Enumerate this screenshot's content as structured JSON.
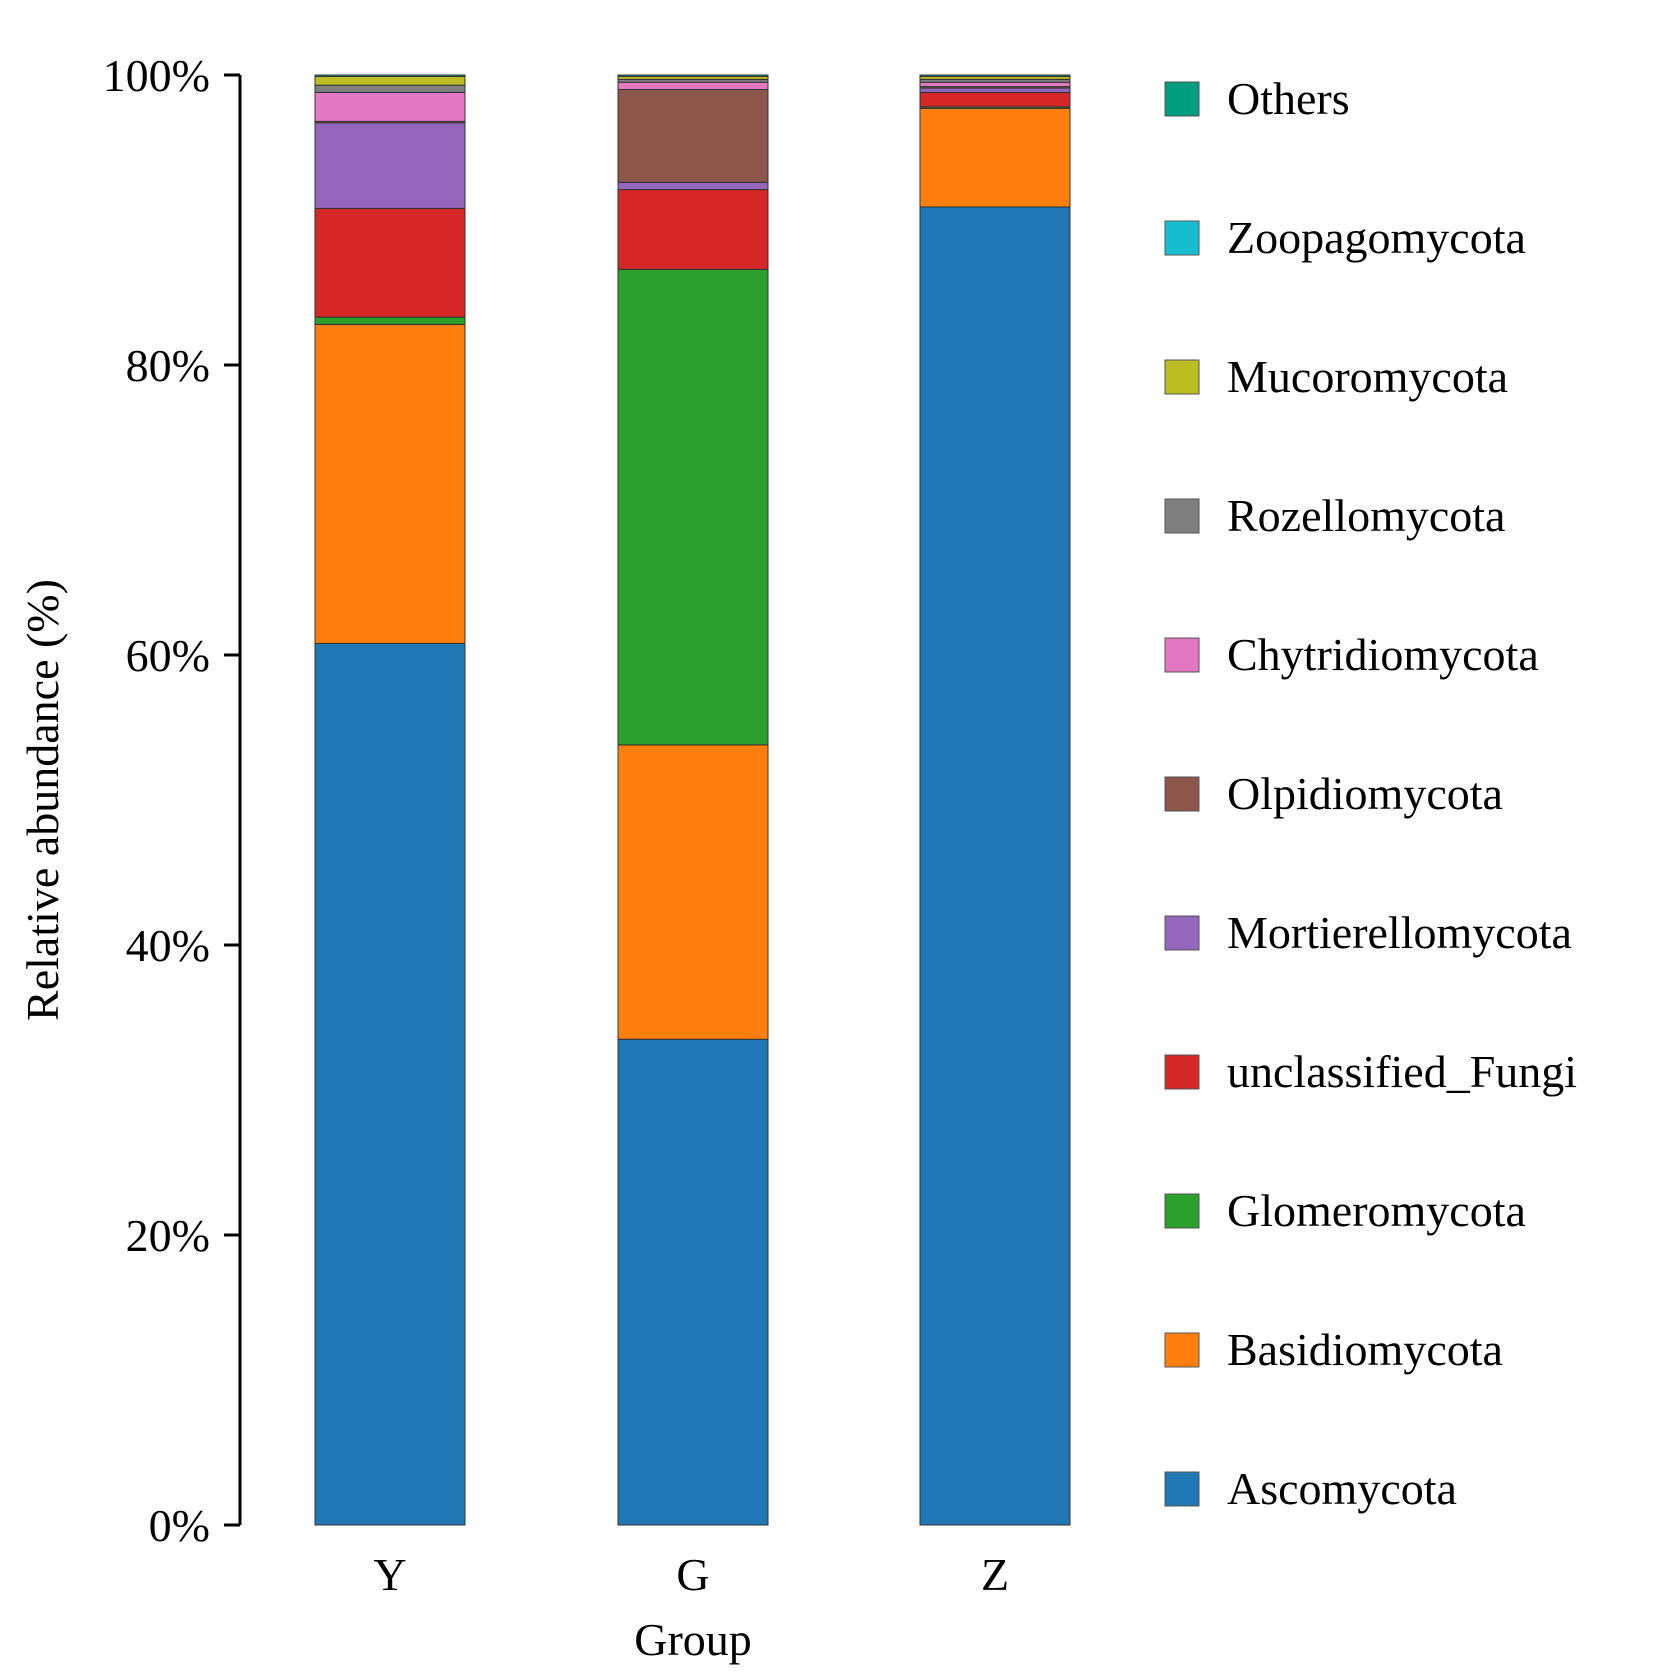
{
  "chart_data": {
    "type": "bar",
    "stacked": true,
    "categories": [
      "Y",
      "G",
      "Z"
    ],
    "xlabel": "Group",
    "ylabel": "Relative abundance (%)",
    "ylim": [
      0,
      100
    ],
    "yticks": [
      "0%",
      "20%",
      "40%",
      "60%",
      "80%",
      "100%"
    ],
    "ytick_values": [
      0,
      20,
      40,
      60,
      80,
      100
    ],
    "legend_position": "right",
    "series": [
      {
        "name": "Ascomycota",
        "color": "#1f77b4",
        "values": [
          60.8,
          33.5,
          90.9
        ]
      },
      {
        "name": "Basidiomycota",
        "color": "#ff7f0e",
        "values": [
          22.0,
          20.3,
          6.8
        ]
      },
      {
        "name": "Glomeromycota",
        "color": "#2ca02c",
        "values": [
          0.5,
          32.8,
          0.1
        ]
      },
      {
        "name": "unclassified_Fungi",
        "color": "#d62728",
        "values": [
          7.5,
          5.5,
          1.0
        ]
      },
      {
        "name": "Mortierellomycota",
        "color": "#9467bd",
        "values": [
          5.9,
          0.5,
          0.3
        ]
      },
      {
        "name": "Olpidiomycota",
        "color": "#8c564b",
        "values": [
          0.1,
          6.4,
          0.1
        ]
      },
      {
        "name": "Chytridiomycota",
        "color": "#e377c2",
        "values": [
          2.0,
          0.5,
          0.3
        ]
      },
      {
        "name": "Rozellomycota",
        "color": "#7f7f7f",
        "values": [
          0.5,
          0.2,
          0.2
        ]
      },
      {
        "name": "Mucoromycota",
        "color": "#bcbd22",
        "values": [
          0.6,
          0.2,
          0.2
        ]
      },
      {
        "name": "Zoopagomycota",
        "color": "#17becf",
        "values": [
          0.0,
          0.0,
          0.0
        ]
      },
      {
        "name": "Others",
        "color": "#009e80",
        "values": [
          0.1,
          0.1,
          0.1
        ]
      }
    ]
  }
}
